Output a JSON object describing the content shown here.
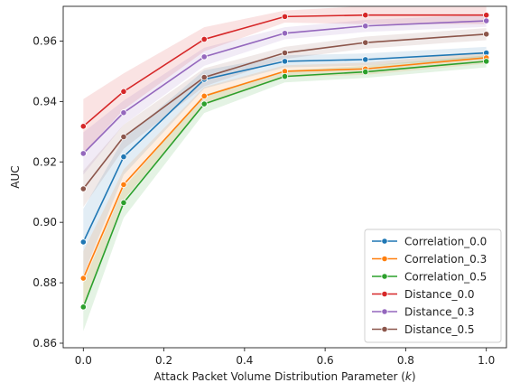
{
  "chart_data": {
    "type": "line",
    "xlabel_prefix": "Attack Packet Volume Distribution Parameter (",
    "xlabel_var": "k",
    "xlabel_suffix": ")",
    "ylabel": "AUC",
    "xlim": [
      -0.05,
      1.05
    ],
    "ylim": [
      0.8585,
      0.9715
    ],
    "xticks": [
      0.0,
      0.2,
      0.4,
      0.6,
      0.8,
      1.0
    ],
    "xtick_labels": [
      "0.0",
      "0.2",
      "0.4",
      "0.6",
      "0.8",
      "1.0"
    ],
    "yticks": [
      0.86,
      0.88,
      0.9,
      0.92,
      0.94,
      0.96
    ],
    "ytick_labels": [
      "0.86",
      "0.88",
      "0.90",
      "0.92",
      "0.94",
      "0.96"
    ],
    "grid": false,
    "legend_position": "lower right",
    "x": [
      0.0,
      0.1,
      0.3,
      0.5,
      0.7,
      1.0
    ],
    "series": [
      {
        "name": "Correlation_0.0",
        "color": "#1f77b4",
        "values": [
          0.8935,
          0.9217,
          0.9473,
          0.9533,
          0.9539,
          0.9561
        ],
        "band": [
          0.011,
          0.006,
          0.003,
          0.002,
          0.002,
          0.002
        ]
      },
      {
        "name": "Correlation_0.3",
        "color": "#ff7f0e",
        "values": [
          0.8815,
          0.9125,
          0.9418,
          0.95,
          0.9508,
          0.9545
        ],
        "band": [
          0.009,
          0.005,
          0.003,
          0.002,
          0.002,
          0.002
        ]
      },
      {
        "name": "Correlation_0.5",
        "color": "#2ca02c",
        "values": [
          0.872,
          0.9065,
          0.9392,
          0.9483,
          0.9498,
          0.9533
        ],
        "band": [
          0.008,
          0.005,
          0.003,
          0.002,
          0.002,
          0.002
        ]
      },
      {
        "name": "Distance_0.0",
        "color": "#d62728",
        "values": [
          0.9318,
          0.9433,
          0.9606,
          0.9681,
          0.9686,
          0.9686
        ],
        "band": [
          0.009,
          0.006,
          0.004,
          0.002,
          0.003,
          0.003
        ]
      },
      {
        "name": "Distance_0.3",
        "color": "#9467bd",
        "values": [
          0.9228,
          0.9363,
          0.9548,
          0.9626,
          0.965,
          0.9667
        ],
        "band": [
          0.007,
          0.004,
          0.003,
          0.002,
          0.002,
          0.002
        ]
      },
      {
        "name": "Distance_0.5",
        "color": "#8c564b",
        "values": [
          0.9111,
          0.9283,
          0.948,
          0.9561,
          0.9595,
          0.9623
        ],
        "band": [
          0.006,
          0.004,
          0.003,
          0.002,
          0.002,
          0.002
        ]
      }
    ]
  }
}
